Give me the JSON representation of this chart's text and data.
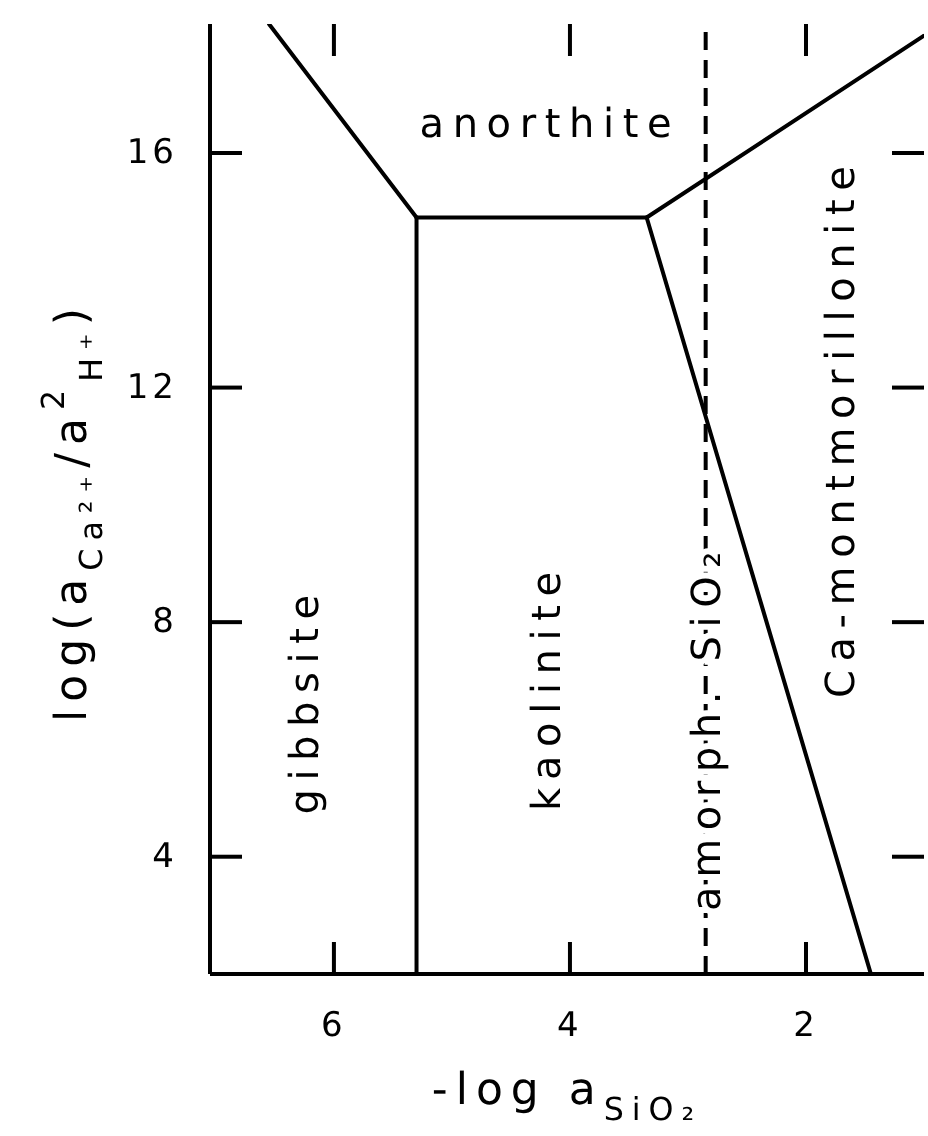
{
  "chart_data": {
    "type": "line",
    "xlabel": "-log a$_{SiO₂}$",
    "ylabel": "log(a$_{Ca²⁺}$/a$^{2}$$_{H⁺}$)",
    "xlim": [
      7.05,
      1.0
    ],
    "xticks": [
      6,
      4,
      2
    ],
    "ylim": [
      2,
      18.2
    ],
    "yticks": [
      4,
      8,
      12,
      16
    ],
    "marker": "none",
    "line_style": "solid",
    "series": [
      {
        "color": "#000000",
        "x": [
          6.55,
          5.3
        ],
        "values": [
          18.2,
          14.9
        ]
      },
      {
        "color": "#000000",
        "x": [
          5.3,
          5.3
        ],
        "values": [
          14.9,
          2
        ]
      },
      {
        "color": "#000000",
        "x": [
          5.3,
          3.35
        ],
        "values": [
          14.9,
          14.9
        ]
      },
      {
        "color": "#000000",
        "x": [
          3.35,
          1.0
        ],
        "values": [
          14.9,
          18.0
        ]
      },
      {
        "color": "#000000",
        "x": [
          3.35,
          1.45
        ],
        "values": [
          14.9,
          2
        ]
      }
    ],
    "ref_lines": [
      {
        "axis": "x",
        "value": 2.85,
        "label": "amorph. SiO₂",
        "line_style": "dashed",
        "color": "#000000"
      }
    ],
    "annotations": [
      "anorthite",
      "gibbsite",
      "kaolinite",
      "Ca-montmorillonite"
    ]
  }
}
